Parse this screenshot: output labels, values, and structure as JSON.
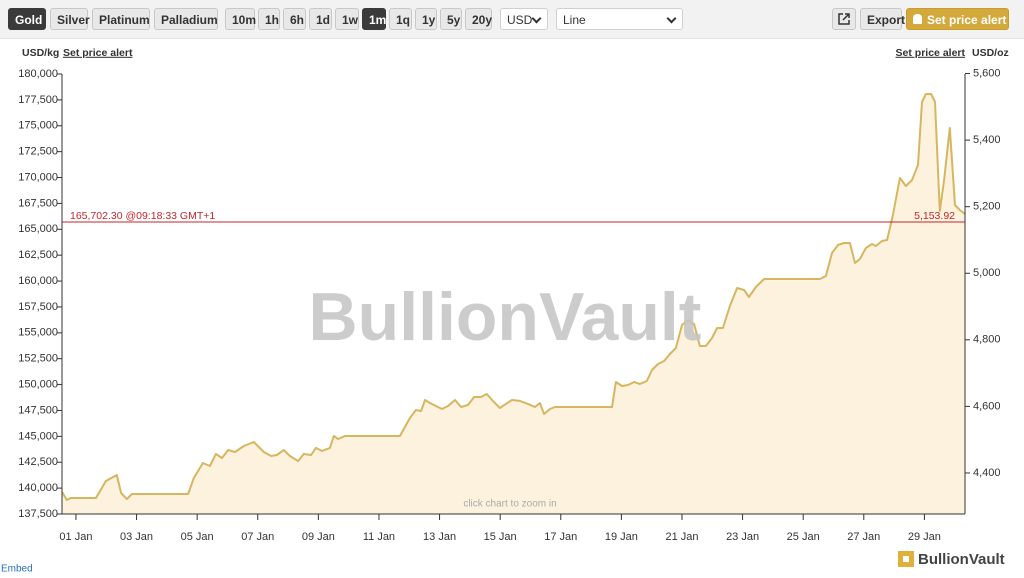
{
  "toolbar": {
    "metals": [
      "Gold",
      "Silver",
      "Platinum",
      "Palladium"
    ],
    "metal_selected": 0,
    "ranges": [
      "10m",
      "1h",
      "6h",
      "1d",
      "1w",
      "1m",
      "1q",
      "1y",
      "5y",
      "20y"
    ],
    "range_selected": 5,
    "currency": "USD",
    "chart_style": "Line",
    "export": "Export",
    "alert": "Set price alert"
  },
  "axis_header": {
    "left_unit": "USD/kg",
    "left_link": "Set price alert",
    "right_link": "Set price alert",
    "right_unit": "USD/oz"
  },
  "watermark": "BullionVault",
  "hint": "click chart to zoom in",
  "embed": "Embed",
  "logo": "BullionVault",
  "chart_data": {
    "type": "area",
    "x": [
      0.54,
      0.7,
      0.83,
      1.66,
      1.99,
      2.35,
      2.49,
      2.68,
      2.85,
      4.7,
      4.89,
      5.19,
      5.42,
      5.62,
      5.82,
      6.02,
      6.25,
      6.54,
      6.87,
      7.2,
      7.44,
      7.63,
      7.86,
      8.06,
      8.33,
      8.52,
      8.76,
      8.92,
      9.12,
      9.38,
      9.51,
      9.65,
      9.88,
      11.69,
      12.02,
      12.22,
      12.39,
      12.52,
      12.68,
      12.88,
      13.08,
      13.28,
      13.51,
      13.71,
      13.94,
      14.14,
      14.37,
      14.56,
      14.76,
      14.99,
      15.19,
      15.39,
      15.65,
      15.92,
      16.15,
      16.31,
      16.45,
      16.64,
      16.81,
      18.69,
      18.82,
      19.02,
      19.22,
      19.42,
      19.61,
      19.84,
      20.01,
      20.21,
      20.41,
      20.6,
      20.8,
      21.0,
      21.2,
      21.4,
      21.59,
      21.79,
      21.99,
      22.16,
      22.35,
      22.58,
      22.82,
      23.05,
      23.21,
      23.44,
      23.71,
      25.55,
      25.75,
      25.95,
      26.15,
      26.35,
      26.54,
      26.71,
      26.87,
      27.07,
      27.27,
      27.4,
      27.6,
      27.77,
      27.96,
      28.19,
      28.39,
      28.59,
      28.79,
      28.92,
      29.05,
      29.22,
      29.35,
      29.51,
      29.65,
      29.84,
      30.01,
      30.17,
      30.34
    ],
    "series": [
      {
        "color": "#d6b660",
        "fill": "#fdf2de",
        "values": [
          139630,
          138850,
          139050,
          139050,
          140690,
          141270,
          139530,
          138950,
          139430,
          139430,
          140980,
          142430,
          142140,
          143300,
          142910,
          143680,
          143490,
          144070,
          144450,
          143490,
          143100,
          143200,
          143680,
          143100,
          142620,
          143300,
          143200,
          143880,
          143590,
          143880,
          145030,
          144740,
          145030,
          145030,
          146770,
          147550,
          147450,
          148510,
          148220,
          147930,
          147640,
          147930,
          148510,
          147840,
          148030,
          148800,
          148800,
          149090,
          148420,
          147740,
          148130,
          148510,
          148420,
          148130,
          147840,
          148220,
          147160,
          147640,
          147840,
          147840,
          150250,
          149860,
          149960,
          150250,
          150060,
          150350,
          151410,
          151990,
          152280,
          152950,
          153530,
          155760,
          156240,
          155850,
          153730,
          153730,
          154500,
          155470,
          155470,
          157590,
          159330,
          159140,
          158460,
          159430,
          160200,
          160200,
          160490,
          162710,
          163480,
          163680,
          163680,
          161740,
          162130,
          163190,
          163580,
          163390,
          163870,
          163970,
          166380,
          169950,
          169180,
          169760,
          171210,
          177300,
          178070,
          178070,
          177300,
          166770,
          169760,
          174780,
          167350,
          166860,
          166480
        ]
      }
    ],
    "xlim": [
      0.54,
      30.34
    ],
    "xticks": [
      {
        "value": 1,
        "label": "01 Jan"
      },
      {
        "value": 3,
        "label": "03 Jan"
      },
      {
        "value": 5,
        "label": "05 Jan"
      },
      {
        "value": 7,
        "label": "07 Jan"
      },
      {
        "value": 9,
        "label": "09 Jan"
      },
      {
        "value": 11,
        "label": "11 Jan"
      },
      {
        "value": 13,
        "label": "13 Jan"
      },
      {
        "value": 15,
        "label": "15 Jan"
      },
      {
        "value": 17,
        "label": "17 Jan"
      },
      {
        "value": 19,
        "label": "19 Jan"
      },
      {
        "value": 21,
        "label": "21 Jan"
      },
      {
        "value": 23,
        "label": "23 Jan"
      },
      {
        "value": 25,
        "label": "25 Jan"
      },
      {
        "value": 27,
        "label": "27 Jan"
      },
      {
        "value": 29,
        "label": "29 Jan"
      }
    ],
    "ylim": [
      137500,
      180000
    ],
    "yticks": [
      {
        "value": 137500,
        "label": "137,500"
      },
      {
        "value": 140000,
        "label": "140,000"
      },
      {
        "value": 142500,
        "label": "142,500"
      },
      {
        "value": 145000,
        "label": "145,000"
      },
      {
        "value": 147500,
        "label": "147,500"
      },
      {
        "value": 150000,
        "label": "150,000"
      },
      {
        "value": 152500,
        "label": "152,500"
      },
      {
        "value": 155000,
        "label": "155,000"
      },
      {
        "value": 157500,
        "label": "157,500"
      },
      {
        "value": 160000,
        "label": "160,000"
      },
      {
        "value": 162500,
        "label": "162,500"
      },
      {
        "value": 165000,
        "label": "165,000"
      },
      {
        "value": 167500,
        "label": "167,500"
      },
      {
        "value": 170000,
        "label": "170,000"
      },
      {
        "value": 172500,
        "label": "172,500"
      },
      {
        "value": 175000,
        "label": "175,000"
      },
      {
        "value": 177500,
        "label": "177,500"
      },
      {
        "value": 180000,
        "label": "180,000"
      }
    ],
    "y2lim": [
      4276.7,
      5598.6
    ],
    "y2ticks": [
      {
        "value": 4400,
        "label": "4,400"
      },
      {
        "value": 4600,
        "label": "4,600"
      },
      {
        "value": 4800,
        "label": "4,800"
      },
      {
        "value": 5000,
        "label": "5,000"
      },
      {
        "value": 5200,
        "label": "5,200"
      },
      {
        "value": 5400,
        "label": "5,400"
      },
      {
        "value": 5600,
        "label": "5,600"
      }
    ],
    "current": {
      "value": 165702.3,
      "label": "165,702.30 @09:18:33 GMT+1",
      "value_y2": 5153.92,
      "label_y2": "5,153.92",
      "color": "#c0272d"
    },
    "grid": false
  }
}
